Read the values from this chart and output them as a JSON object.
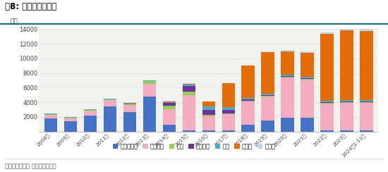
{
  "title": "图8: 铝土矿进口结构",
  "ylabel": "万吨",
  "source": "资料来源：海关 新湖期货研究所",
  "years": [
    "2008年",
    "2009年",
    "2010年",
    "2011年",
    "2012年",
    "2013年",
    "2014年",
    "2015年",
    "2016年",
    "2017年",
    "2018年",
    "2019年",
    "2020年",
    "2021年",
    "2022年",
    "2023年",
    "2024年1-11月"
  ],
  "series": {
    "印度尼西亚": [
      1800,
      1400,
      2200,
      3400,
      2700,
      4800,
      900,
      200,
      200,
      200,
      900,
      1500,
      1900,
      1900,
      200,
      200,
      200
    ],
    "澳大利亚": [
      500,
      400,
      700,
      900,
      900,
      1700,
      2200,
      4800,
      1900,
      2200,
      3200,
      3300,
      5500,
      5200,
      3600,
      3700,
      3700
    ],
    "印度": [
      100,
      100,
      100,
      100,
      100,
      400,
      400,
      500,
      200,
      100,
      100,
      100,
      100,
      100,
      100,
      100,
      100
    ],
    "马来西亚": [
      0,
      0,
      0,
      0,
      0,
      0,
      400,
      700,
      700,
      500,
      200,
      100,
      100,
      100,
      100,
      100,
      100
    ],
    "巴西": [
      100,
      100,
      100,
      100,
      100,
      100,
      100,
      200,
      400,
      300,
      200,
      200,
      200,
      200,
      200,
      200,
      200
    ],
    "几内亚": [
      0,
      0,
      0,
      0,
      100,
      0,
      100,
      100,
      700,
      3300,
      4400,
      5700,
      3200,
      3300,
      9200,
      9600,
      9500
    ],
    "土耳其": [
      0,
      0,
      0,
      0,
      100,
      0,
      100,
      100,
      0,
      0,
      0,
      100,
      200,
      200,
      200,
      200,
      200
    ]
  },
  "colors": {
    "印度尼西亚": "#4472C4",
    "澳大利亚": "#F4ACBE",
    "印度": "#92D050",
    "马来西亚": "#7030A0",
    "巴西": "#4BACC6",
    "几内亚": "#E36C09",
    "土耳其": "#BDD7EE"
  },
  "ylim": [
    0,
    14000
  ],
  "yticks": [
    0,
    2000,
    4000,
    6000,
    8000,
    10000,
    12000,
    14000
  ],
  "bar_width": 0.65,
  "plot_bg_color": "#F2F2EE",
  "fig_bg_color": "#FFFFFF",
  "title_line_color": "#1F7878",
  "grid_color": "#DDDDDD",
  "title_fontsize": 8.5,
  "ylabel_fontsize": 6.5,
  "ytick_fontsize": 6,
  "xtick_fontsize": 5.2,
  "legend_fontsize": 6,
  "source_fontsize": 6
}
